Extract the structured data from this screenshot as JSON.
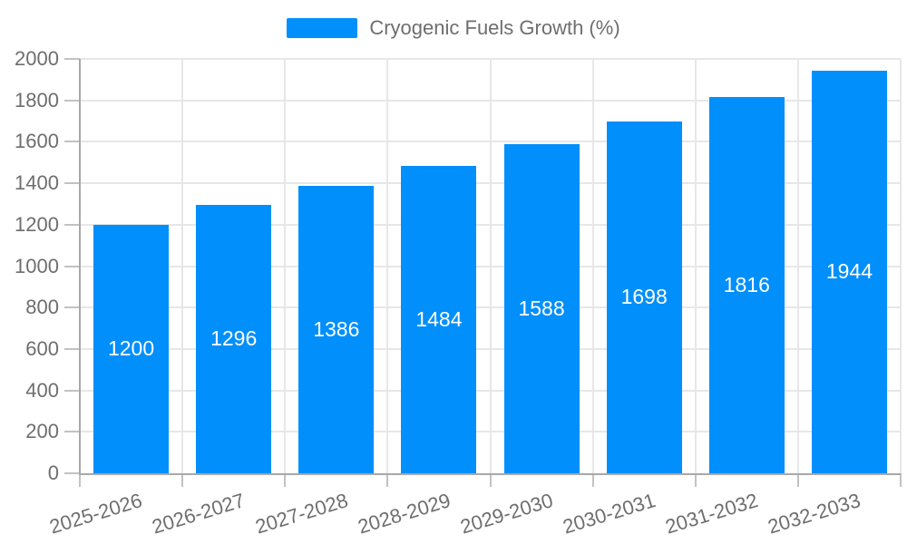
{
  "legend": {
    "label": "Cryogenic Fuels Growth (%)"
  },
  "chart_data": {
    "type": "bar",
    "title": "Cryogenic Fuels Growth (%)",
    "categories": [
      "2025-2026",
      "2026-2027",
      "2027-2028",
      "2028-2029",
      "2029-2030",
      "2030-2031",
      "2031-2032",
      "2032-2033"
    ],
    "values": [
      1200,
      1296,
      1386,
      1484,
      1588,
      1698,
      1816,
      1944
    ],
    "value_labels": [
      "1200",
      "1296",
      "1386",
      "1484",
      "1588",
      "1698",
      "1816",
      "1944"
    ],
    "xlabel": "",
    "ylabel": "",
    "ylim": [
      0,
      2000
    ],
    "y_tick_step": 200,
    "y_ticks": [
      0,
      200,
      400,
      600,
      800,
      1000,
      1200,
      1400,
      1600,
      1800,
      2000
    ],
    "grid": true,
    "legend_position": "top",
    "colors": {
      "bar": "#008ffb",
      "value_label": "#ffffff",
      "axis_label": "#6e6e6e",
      "gridline": "#e7e7e7",
      "tick": "#c2c2c2",
      "axis_line": "#a8a8a8"
    }
  }
}
